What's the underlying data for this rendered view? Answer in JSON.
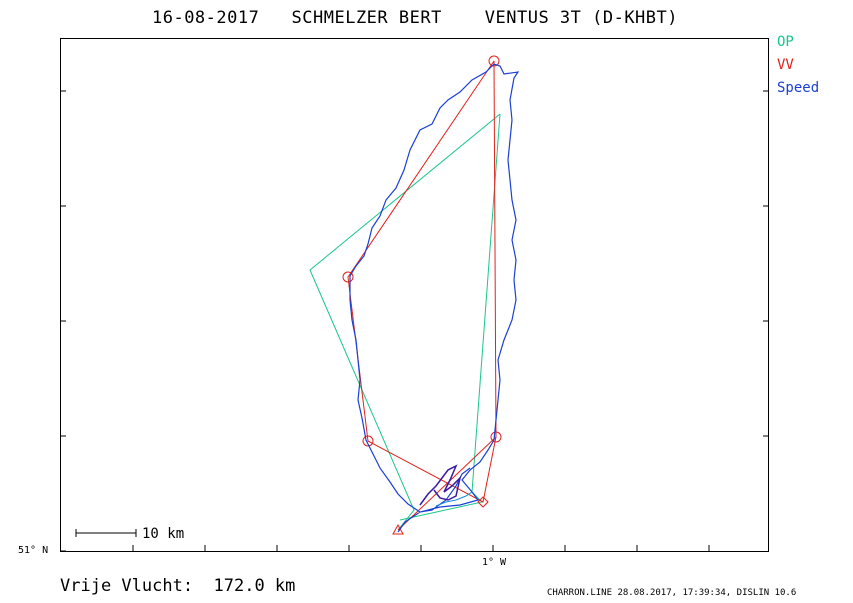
{
  "header": {
    "title": "16-08-2017   SCHMELZER BERT    VENTUS 3T (D-KHBT)"
  },
  "legend": [
    {
      "label": "OP",
      "color": "#19c78a"
    },
    {
      "label": "VV",
      "color": "#e0221b"
    },
    {
      "label": "Speed",
      "color": "#1a3fd6"
    }
  ],
  "axes": {
    "lat_label": "51° N",
    "lon_label": "1° W"
  },
  "scale_bar": {
    "label": "10 km"
  },
  "footer": {
    "distance": "Vrije Vlucht:  172.0 km",
    "credit": "CHARRON.LINE 28.08.2017, 17:39:34, DISLIN 10.6"
  }
}
